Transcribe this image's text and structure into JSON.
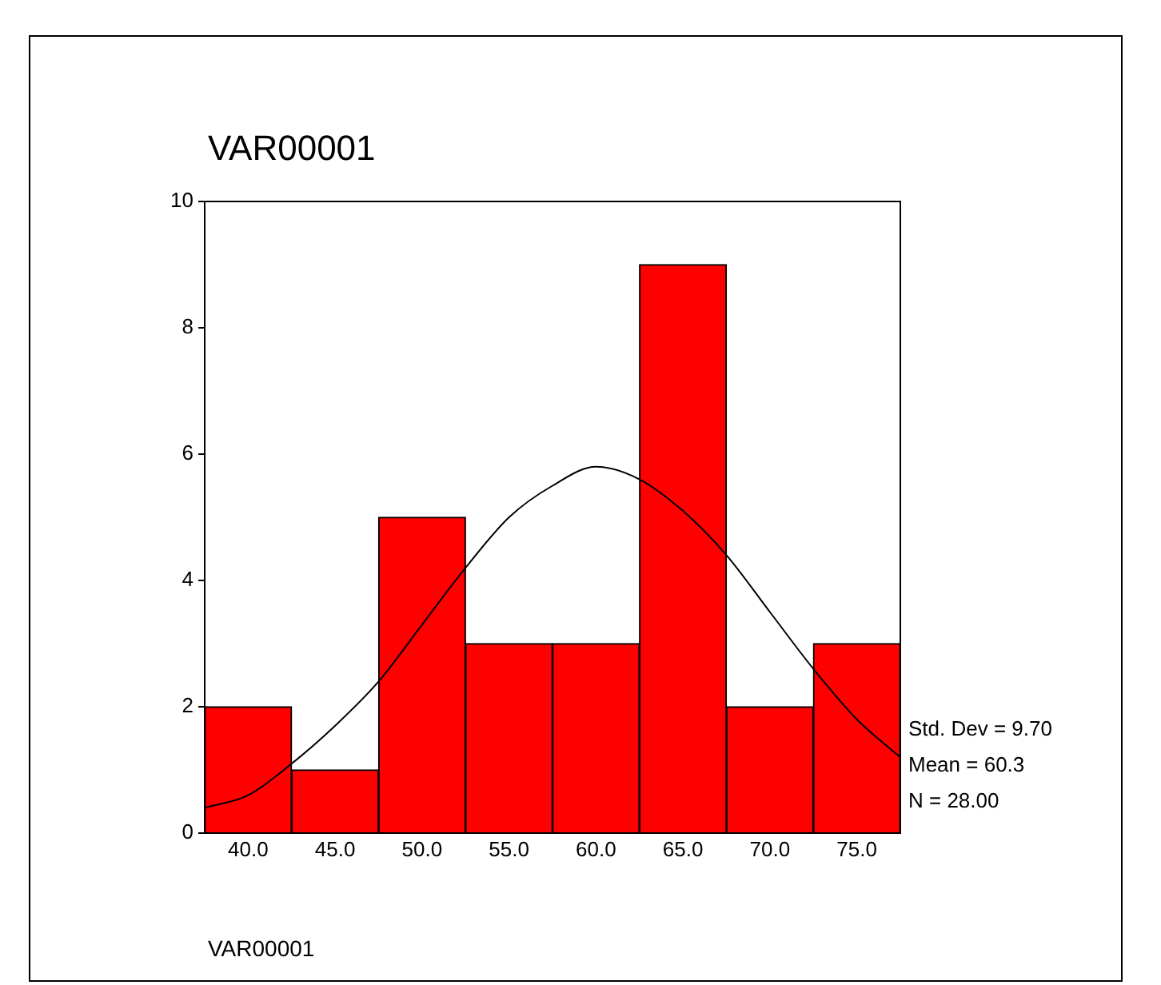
{
  "chart_data": {
    "type": "histogram",
    "title": "VAR00001",
    "xlabel": "VAR00001",
    "bins": [
      37.5,
      42.5,
      47.5,
      52.5,
      57.5,
      62.5,
      67.5,
      72.5,
      77.5
    ],
    "values": [
      2,
      1,
      5,
      3,
      3,
      9,
      2,
      3
    ],
    "color": "#ff0000",
    "series": [
      {
        "type": "line",
        "color": "#000000",
        "marker": "none",
        "x": [
          37.5,
          40,
          42.5,
          45,
          47.5,
          50,
          52.5,
          55,
          57.5,
          60,
          62.5,
          65,
          67.5,
          70,
          72.5,
          75,
          77.5
        ],
        "values": [
          0.4,
          0.6,
          1.1,
          1.7,
          2.4,
          3.3,
          4.2,
          5.0,
          5.5,
          5.8,
          5.6,
          5.1,
          4.4,
          3.5,
          2.6,
          1.8,
          1.2
        ]
      }
    ],
    "xlim": [
      37.5,
      77.5
    ],
    "xticks": [
      {
        "value": 40,
        "label": "40.0"
      },
      {
        "value": 45,
        "label": "45.0"
      },
      {
        "value": 50,
        "label": "50.0"
      },
      {
        "value": 55,
        "label": "55.0"
      },
      {
        "value": 60,
        "label": "60.0"
      },
      {
        "value": 65,
        "label": "65.0"
      },
      {
        "value": 70,
        "label": "70.0"
      },
      {
        "value": 75,
        "label": "75.0"
      }
    ],
    "ylim": [
      0,
      10
    ],
    "yticks": [
      0,
      2,
      4,
      6,
      8,
      10
    ],
    "grid": false,
    "annotations": [
      "Std. Dev = 9.70",
      "Mean = 60.3",
      "N = 28.00"
    ]
  }
}
